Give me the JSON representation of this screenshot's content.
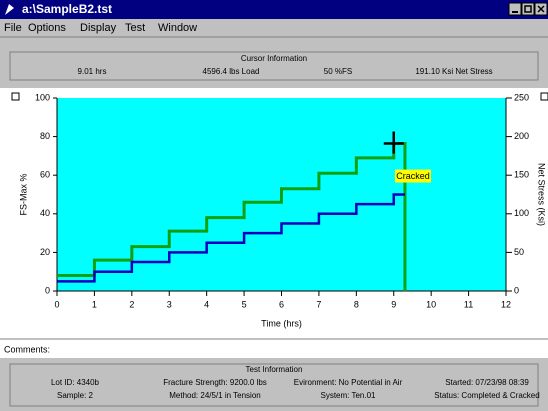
{
  "window": {
    "title": "a:\\SampleB2.tst",
    "menu": [
      "File",
      "Options",
      "Display",
      "Test",
      "Window"
    ]
  },
  "cursor_info": {
    "title": "Cursor Information",
    "fields": [
      "9.01 hrs",
      "4596.4 lbs Load",
      "50 %FS",
      "191.10 Ksi Net Stress"
    ]
  },
  "chart_data": {
    "type": "line",
    "xlabel": "Time (hrs)",
    "ylabel": "FS-Max %",
    "y2label": "Net Stress (Ksi)",
    "xlim": [
      0,
      12
    ],
    "xticks": [
      0,
      1,
      2,
      3,
      4,
      5,
      6,
      7,
      8,
      9,
      10,
      11,
      12
    ],
    "ylim": [
      0,
      100
    ],
    "yticks": [
      0,
      20,
      40,
      60,
      80,
      100
    ],
    "y2lim": [
      0,
      250
    ],
    "y2ticks": [
      0,
      50,
      100,
      150,
      200,
      250
    ],
    "background": "#00ffff",
    "series": [
      {
        "name": "Net Stress",
        "color": "#10a010",
        "axis": "y2",
        "x": [
          0,
          1,
          1,
          2,
          2,
          3,
          3,
          4,
          4,
          5,
          5,
          6,
          6,
          7,
          7,
          8,
          8,
          9,
          9,
          9.3,
          9.3
        ],
        "values": [
          20,
          20,
          40,
          40,
          57.5,
          57.5,
          77.5,
          77.5,
          95,
          95,
          115,
          115,
          132.5,
          132.5,
          152.5,
          152.5,
          172.5,
          172.5,
          191,
          191,
          0
        ]
      },
      {
        "name": "FS-Max",
        "color": "#0000c0",
        "x": [
          0,
          1,
          1,
          2,
          2,
          3,
          3,
          4,
          4,
          5,
          5,
          6,
          6,
          7,
          7,
          8,
          8,
          9,
          9,
          9.3
        ],
        "values": [
          5,
          5,
          10,
          10,
          15,
          15,
          20,
          20,
          25,
          25,
          30,
          30,
          35,
          35,
          40,
          40,
          45,
          45,
          50,
          50
        ]
      }
    ],
    "annotation": "Cracked"
  },
  "comments": {
    "label": "Comments:"
  },
  "test_info": {
    "title": "Test Information",
    "rows": [
      [
        "Lot ID: 4340b",
        "Fracture Strength: 9200.0 lbs",
        "Evironment: No Potential in Air",
        "Started: 07/23/98 08:39"
      ],
      [
        "Sample: 2",
        "Method: 24/5/1 in Tension",
        "System: Ten.01",
        "Status: Completed & Cracked"
      ]
    ]
  }
}
